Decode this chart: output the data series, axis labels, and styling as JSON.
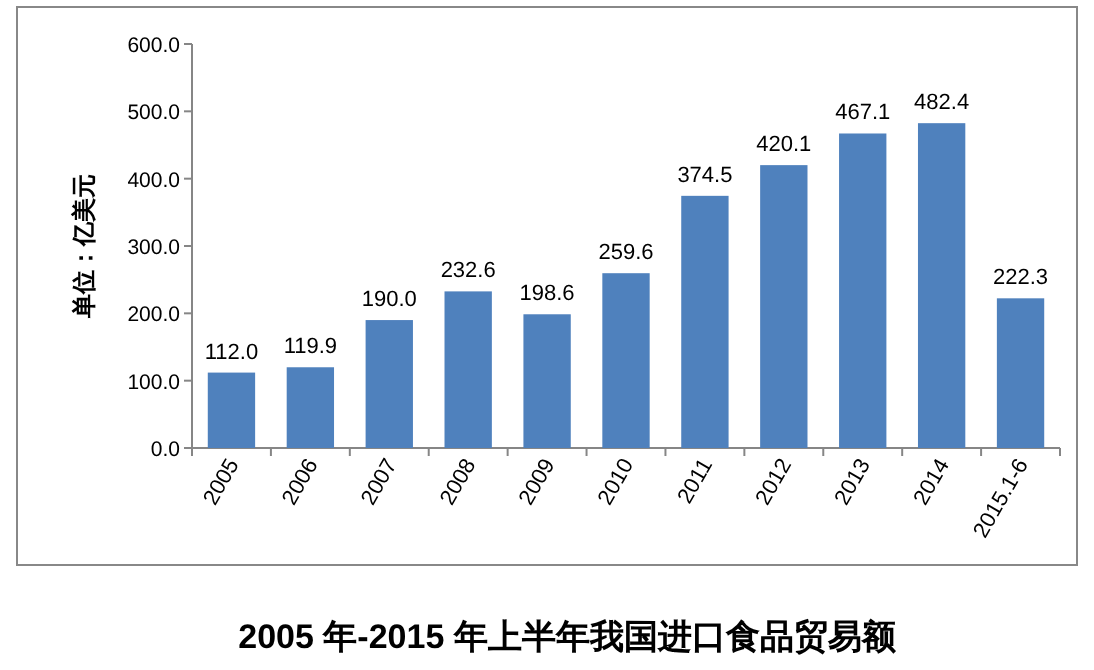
{
  "chart_data": {
    "type": "bar",
    "title": "2005 年-2015 年上半年我国进口食品贸易额",
    "ylabel": "单位：亿美元",
    "categories": [
      "2005",
      "2006",
      "2007",
      "2008",
      "2009",
      "2010",
      "2011",
      "2012",
      "2013",
      "2014",
      "2015.1-6"
    ],
    "values": [
      112.0,
      119.9,
      190.0,
      232.6,
      198.6,
      259.6,
      374.5,
      420.1,
      467.1,
      482.4,
      222.3
    ],
    "value_labels": [
      "112.0",
      "119.9",
      "190.0",
      "232.6",
      "198.6",
      "259.6",
      "374.5",
      "420.1",
      "467.1",
      "482.4",
      "222.3"
    ],
    "color": "#4f81bd",
    "ylim": [
      0,
      600
    ],
    "yticks": [
      {
        "value": 0,
        "label": "0.0"
      },
      {
        "value": 100,
        "label": "100.0"
      },
      {
        "value": 200,
        "label": "200.0"
      },
      {
        "value": 300,
        "label": "300.0"
      },
      {
        "value": 400,
        "label": "400.0"
      },
      {
        "value": 500,
        "label": "500.0"
      },
      {
        "value": 600,
        "label": "600.0"
      }
    ]
  }
}
